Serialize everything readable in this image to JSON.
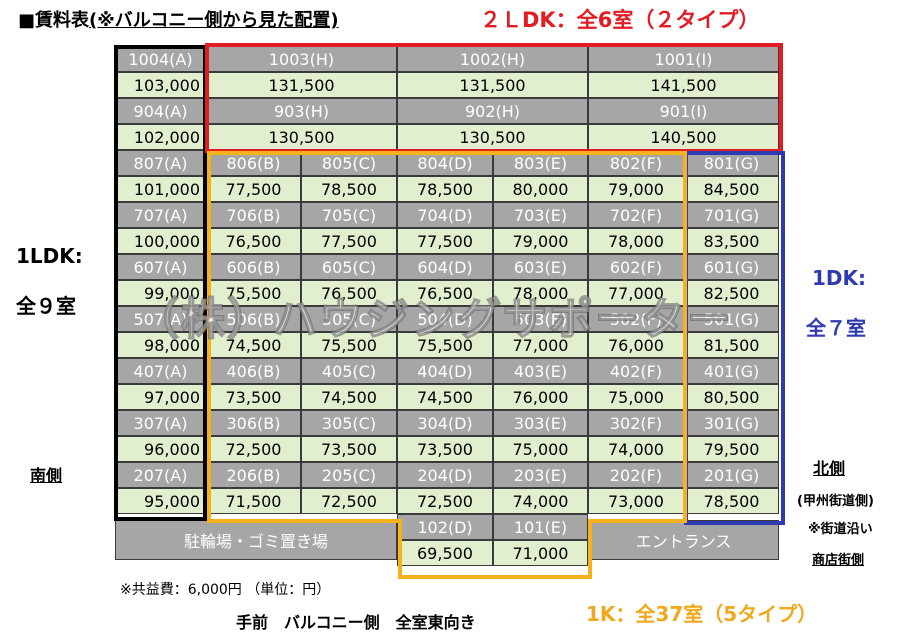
{
  "title_prefix": "■賃料表",
  "title_note": "(※バルコニー側から見た配置)",
  "heading_2ldk": "２ＬDK：全6室（２タイプ）",
  "label_1ldk": "1LDK:",
  "label_1ldk_count": "全９室",
  "label_south": "南側",
  "label_1dk": "1DK:",
  "label_1dk_count": "全７室",
  "label_north": "北側",
  "label_road": "(甲州街道側)",
  "label_road_note": "※街道沿い",
  "label_shops": "商店街側",
  "note_common": "※共益費：6,000円 （単位：円）",
  "bottom_caption": "手前　バルコニー側　全室東向き",
  "heading_1k": "1K：全37室（5タイプ）",
  "bicycle": "駐輪場・ゴミ置き場",
  "entrance": "エントランス",
  "watermark": "（株）ハウジングサポーター",
  "colors": {
    "red_frame": "#e31c23",
    "blue_frame": "#2e3bb0",
    "orange_frame": "#f5b21d",
    "black_frame": "#000000",
    "room_gray": "#a6a6a6",
    "rent_green": "#e2efcf"
  },
  "table": {
    "floor10": {
      "a_room": "1004(A)",
      "h1_room": "1003(H)",
      "h2_room": "1002(H)",
      "i_room": "1001(I)"
    },
    "floor10_rent": {
      "a": "103,000",
      "h1": "131,500",
      "h2": "131,500",
      "i": "141,500"
    },
    "floor9": {
      "a_room": "904(A)",
      "h1_room": "903(H)",
      "h2_room": "902(H)",
      "i_room": "901(I)"
    },
    "floor9_rent": {
      "a": "102,000",
      "h1": "130,500",
      "h2": "130,500",
      "i": "140,500"
    },
    "floors": [
      {
        "rooms": [
          "807(A)",
          "806(B)",
          "805(C)",
          "804(D)",
          "803(E)",
          "802(F)",
          "801(G)"
        ],
        "rents": [
          "101,000",
          "77,500",
          "78,500",
          "78,500",
          "80,000",
          "79,000",
          "84,500"
        ]
      },
      {
        "rooms": [
          "707(A)",
          "706(B)",
          "705(C)",
          "704(D)",
          "703(E)",
          "702(F)",
          "701(G)"
        ],
        "rents": [
          "100,000",
          "76,500",
          "77,500",
          "77,500",
          "79,000",
          "78,000",
          "83,500"
        ]
      },
      {
        "rooms": [
          "607(A)",
          "606(B)",
          "605(C)",
          "604(D)",
          "603(E)",
          "602(F)",
          "601(G)"
        ],
        "rents": [
          "99,000",
          "75,500",
          "76,500",
          "76,500",
          "78,000",
          "77,000",
          "82,500"
        ]
      },
      {
        "rooms": [
          "507(A)",
          "506(B)",
          "505(C)",
          "504(D)",
          "503(E)",
          "502(F)",
          "501(G)"
        ],
        "rents": [
          "98,000",
          "74,500",
          "75,500",
          "75,500",
          "77,000",
          "76,000",
          "81,500"
        ]
      },
      {
        "rooms": [
          "407(A)",
          "406(B)",
          "405(C)",
          "404(D)",
          "403(E)",
          "402(F)",
          "401(G)"
        ],
        "rents": [
          "97,000",
          "73,500",
          "74,500",
          "74,500",
          "76,000",
          "75,000",
          "80,500"
        ]
      },
      {
        "rooms": [
          "307(A)",
          "306(B)",
          "305(C)",
          "304(D)",
          "303(E)",
          "302(F)",
          "301(G)"
        ],
        "rents": [
          "96,000",
          "72,500",
          "73,500",
          "73,500",
          "75,000",
          "74,000",
          "79,500"
        ]
      },
      {
        "rooms": [
          "207(A)",
          "206(B)",
          "205(C)",
          "204(D)",
          "203(E)",
          "202(F)",
          "201(G)"
        ],
        "rents": [
          "95,000",
          "71,500",
          "72,500",
          "72,500",
          "74,000",
          "73,000",
          "78,500"
        ]
      }
    ],
    "floor1": {
      "rooms": [
        "102(D)",
        "101(E)"
      ],
      "rents": [
        "69,500",
        "71,000"
      ]
    }
  }
}
